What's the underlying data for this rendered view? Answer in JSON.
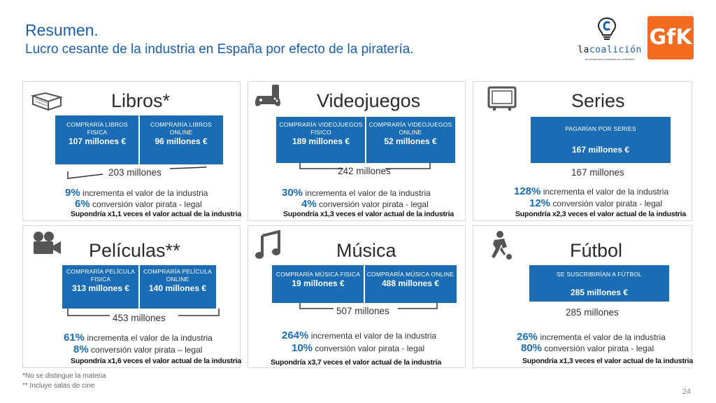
{
  "header": {
    "title": "Resumen.",
    "subtitle": "Lucro cesante de la industria en España por efecto de la piratería."
  },
  "logos": {
    "coalicion_name_prefix": "la",
    "coalicion_name": "coalición",
    "coalicion_tagline": "de creadores e industrias de contenidos",
    "gfk": "GfK"
  },
  "panels": {
    "libros": {
      "icon": "book-icon",
      "title": "Libros*",
      "box1": {
        "label": "COMPRARÍA LIBROS FISICA",
        "value": "107 millones €"
      },
      "box2": {
        "label": "COMPRARÍA LIBROS ONLINE",
        "value": "96 millones €"
      },
      "total": "203 millones",
      "stat1_pct": "9%",
      "stat1_text": " incrementa el valor de la industria",
      "stat2_pct": "6%",
      "stat2_text": " conversión valor pirata - legal",
      "summary": "Supondría x1,1 veces el valor actual de la industria"
    },
    "videojuegos": {
      "icon": "game-console-icon",
      "title": "Videojuegos",
      "box1": {
        "label": "COMPRARÍA VIDEOJUEGOS FISICO",
        "value": "189 millones €"
      },
      "box2": {
        "label": "COMPRARÍA VIDEOJUEGOS ONLINE",
        "value": "52 millones €"
      },
      "total": "242 millones",
      "stat1_pct": "30%",
      "stat1_text": " incrementa el valor de la industria",
      "stat2_pct": "4%",
      "stat2_text": " conversión valor pirata - legal",
      "summary": "Supondría x1,3 veces el valor actual de la industria"
    },
    "series": {
      "icon": "tv-icon",
      "title": "Series",
      "box1": {
        "label": "PAGARÍAN POR SERIES",
        "value": "167 millones €"
      },
      "total": "167 millones",
      "stat1_pct": "128%",
      "stat1_text": " incrementa el valor de la industria",
      "stat2_pct": "12%",
      "stat2_text": " conversión valor pirata - legal",
      "summary": "Supondría x2,3 veces el valor actual de la industria"
    },
    "peliculas": {
      "icon": "movie-camera-icon",
      "title": "Películas**",
      "box1": {
        "label": "COMPRARÍA PELÍCULA FISICA",
        "value": "313 millones €"
      },
      "box2": {
        "label": "COMPRARÍA PELÍCULA ONLINE",
        "value": "140 millones €"
      },
      "total": "453 millones",
      "stat1_pct": "61%",
      "stat1_text": " incrementa el valor de la industria",
      "stat2_pct": "8%",
      "stat2_text": " conversión valor pirata – legal",
      "summary": "Supondría x1,6 veces el valor actual de la industria"
    },
    "musica": {
      "icon": "music-note-icon",
      "title": "Música",
      "box1": {
        "label": "COMPRARÍA MÚSICA FISICA",
        "value": "19 millones €"
      },
      "box2": {
        "label": "COMPRARÍA MÚSICA ONLINE",
        "value": "488 millones €"
      },
      "total": "507 millones",
      "stat1_pct": "264%",
      "stat1_text": " incrementa el valor de la industria",
      "stat2_pct": "10%",
      "stat2_text": " conversión valor pirata - legal",
      "summary": "Supondría x3,7 veces el valor actual de la industria"
    },
    "futbol": {
      "icon": "football-player-icon",
      "title": "Fútbol",
      "box1": {
        "label": "SE SUSCRIBIRÍAN A FÚTBOL",
        "value": "285 millones €"
      },
      "total": "285 millones",
      "stat1_pct": "26%",
      "stat1_text": " incrementa el valor de la industria",
      "stat2_pct": "80%",
      "stat2_text": " conversión valor pirata - legal",
      "summary": "Supondría x1,3 veces el valor actual de la industria"
    }
  },
  "footnotes": {
    "note1": "*No se distingue la materia",
    "note2": "** Incluye salas de cine"
  },
  "page_number": "24",
  "colors": {
    "accent": "#1a5fa8",
    "box": "#1a6cb4",
    "gfk": "#f26b21"
  }
}
